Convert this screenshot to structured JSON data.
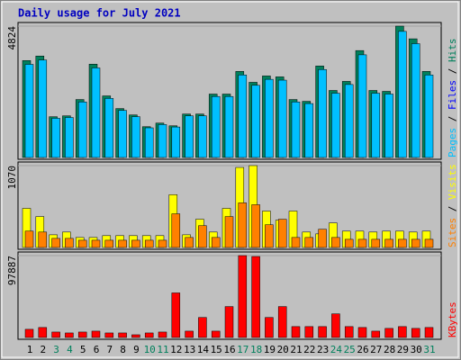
{
  "chart_data": [
    {
      "type": "bar",
      "title": "Daily usage for July 2021",
      "ylim": [
        0,
        4824
      ],
      "yticks": [
        4824
      ],
      "legend_separator": " / ",
      "series": [
        {
          "name": "Hits",
          "color": "#00805c",
          "values": [
            3560,
            3726,
            1497,
            1530,
            2129,
            3427,
            2262,
            1797,
            1564,
            1131,
            1264,
            1164,
            1597,
            1597,
            2329,
            2329,
            3161,
            2761,
            2994,
            2961,
            2129,
            2063,
            3360,
            2462,
            2795,
            3926,
            2462,
            2429,
            4824,
            4358,
            3161
          ]
        },
        {
          "name": "Files",
          "color": "#0000ff",
          "values": [
            1200,
            1300,
            500,
            520,
            700,
            1150,
            760,
            600,
            520,
            380,
            420,
            390,
            540,
            540,
            780,
            780,
            1060,
            930,
            1000,
            990,
            710,
            690,
            1120,
            830,
            930,
            1310,
            820,
            810,
            1620,
            1460,
            1060
          ]
        },
        {
          "name": "Pages",
          "color": "#00c0ff",
          "values": [
            3420,
            3580,
            1440,
            1470,
            2040,
            3290,
            2170,
            1730,
            1500,
            1090,
            1210,
            1120,
            1530,
            1530,
            2240,
            2240,
            3030,
            2650,
            2870,
            2840,
            2040,
            1980,
            3230,
            2360,
            2680,
            3770,
            2360,
            2330,
            4630,
            4180,
            3030
          ]
        }
      ]
    },
    {
      "type": "bar",
      "ylim": [
        0,
        1070
      ],
      "yticks": [
        1070
      ],
      "legend_separator": " / ",
      "series": [
        {
          "name": "Visits",
          "color": "#ffff00",
          "values": [
            511,
            404,
            166,
            202,
            131,
            131,
            155,
            155,
            155,
            155,
            155,
            690,
            166,
            369,
            202,
            511,
            1046,
            1070,
            476,
            357,
            476,
            202,
            178,
            321,
            214,
            214,
            202,
            214,
            214,
            202,
            214
          ]
        },
        {
          "name": "Sites",
          "color": "#ff8000",
          "values": [
            214,
            202,
            119,
            119,
            95,
            95,
            95,
            95,
            95,
            95,
            95,
            440,
            131,
            285,
            131,
            404,
            583,
            559,
            297,
            369,
            131,
            131,
            238,
            131,
            107,
            107,
            107,
            107,
            107,
            107,
            107
          ]
        }
      ]
    },
    {
      "type": "bar",
      "ylim": [
        0,
        97887
      ],
      "yticks": [
        97887
      ],
      "categories": [
        "1",
        "2",
        "3",
        "4",
        "5",
        "6",
        "7",
        "8",
        "9",
        "10",
        "11",
        "12",
        "13",
        "14",
        "15",
        "16",
        "17",
        "18",
        "19",
        "20",
        "21",
        "22",
        "23",
        "24",
        "25",
        "26",
        "27",
        "28",
        "29",
        "30",
        "31"
      ],
      "category_colors": [
        "#000000",
        "#000000",
        "#00805c",
        "#00805c",
        "#000000",
        "#000000",
        "#000000",
        "#000000",
        "#000000",
        "#00805c",
        "#00805c",
        "#000000",
        "#000000",
        "#000000",
        "#000000",
        "#000000",
        "#00805c",
        "#00805c",
        "#000000",
        "#000000",
        "#000000",
        "#000000",
        "#000000",
        "#00805c",
        "#00805c",
        "#000000",
        "#000000",
        "#000000",
        "#000000",
        "#000000",
        "#00805c"
      ],
      "series": [
        {
          "name": "KBytes",
          "color": "#ff0000",
          "values": [
            9789,
            11964,
            6526,
            5438,
            6526,
            7613,
            5438,
            5438,
            3263,
            5438,
            6526,
            53294,
            7613,
            23928,
            7613,
            36979,
            97887,
            96800,
            23928,
            36979,
            13052,
            13052,
            13052,
            28279,
            13052,
            11964,
            7613,
            10876,
            13052,
            10876,
            11964
          ]
        }
      ]
    }
  ]
}
